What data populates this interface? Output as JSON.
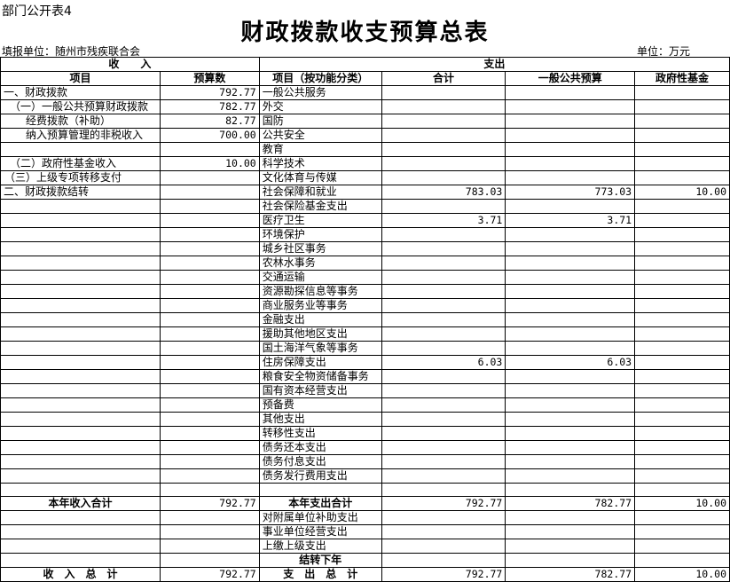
{
  "header": {
    "code": "部门公开表4",
    "title": "财政拨款收支预算总表",
    "unit_left": "填报单位：随州市残疾联合会",
    "unit_right": "单位：万元"
  },
  "table": {
    "group_headers": [
      "收　　入",
      "支出"
    ],
    "columns": [
      "项目",
      "预算数",
      "项目（按功能分类）",
      "合计",
      "一般公共预算",
      "政府性基金"
    ],
    "rows": [
      [
        "一、财政拨款",
        "792.77",
        "一般公共服务",
        null,
        null,
        null
      ],
      [
        "（一）一般公共预算财政拨款",
        "782.77",
        "外交",
        null,
        null,
        null
      ],
      [
        "经费拨款（补助）",
        "82.77",
        "国防",
        null,
        null,
        null
      ],
      [
        "纳入预算管理的非税收入",
        "700.00",
        "公共安全",
        null,
        null,
        null
      ],
      [
        null,
        null,
        "教育",
        null,
        null,
        null
      ],
      [
        "（二）政府性基金收入",
        "10.00",
        "科学技术",
        null,
        null,
        null
      ],
      [
        "（三）上级专项转移支付",
        null,
        "文化体育与传媒",
        null,
        null,
        null
      ],
      [
        "二、财政拨款结转",
        null,
        "社会保障和就业",
        "783.03",
        "773.03",
        "10.00"
      ],
      [
        null,
        null,
        "社会保险基金支出",
        null,
        null,
        null
      ],
      [
        null,
        null,
        "医疗卫生",
        "3.71",
        "3.71",
        null
      ],
      [
        null,
        null,
        "环境保护",
        null,
        null,
        null
      ],
      [
        null,
        null,
        "城乡社区事务",
        null,
        null,
        null
      ],
      [
        null,
        null,
        "农林水事务",
        null,
        null,
        null
      ],
      [
        null,
        null,
        "交通运输",
        null,
        null,
        null
      ],
      [
        null,
        null,
        "资源勘探信息等事务",
        null,
        null,
        null
      ],
      [
        null,
        null,
        "商业服务业等事务",
        null,
        null,
        null
      ],
      [
        null,
        null,
        "金融支出",
        null,
        null,
        null
      ],
      [
        null,
        null,
        "援助其他地区支出",
        null,
        null,
        null
      ],
      [
        null,
        null,
        "国土海洋气象等事务",
        null,
        null,
        null
      ],
      [
        null,
        null,
        "住房保障支出",
        "6.03",
        "6.03",
        null
      ],
      [
        null,
        null,
        "粮食安全物资储备事务",
        null,
        null,
        null
      ],
      [
        null,
        null,
        "国有资本经营支出",
        null,
        null,
        null
      ],
      [
        null,
        null,
        "预备费",
        null,
        null,
        null
      ],
      [
        null,
        null,
        "其他支出",
        null,
        null,
        null
      ],
      [
        null,
        null,
        "转移性支出",
        null,
        null,
        null
      ],
      [
        null,
        null,
        "债务还本支出",
        null,
        null,
        null
      ],
      [
        null,
        null,
        "债务付息支出",
        null,
        null,
        null
      ],
      [
        null,
        null,
        "债务发行费用支出",
        null,
        null,
        null
      ],
      [
        null,
        null,
        null,
        null,
        null,
        null
      ],
      [
        "本年收入合计",
        "792.77",
        "本年支出合计",
        "792.77",
        "782.77",
        "10.00"
      ],
      [
        null,
        null,
        "对附属单位补助支出",
        null,
        null,
        null
      ],
      [
        null,
        null,
        "事业单位经营支出",
        null,
        null,
        null
      ],
      [
        null,
        null,
        "上缴上级支出",
        null,
        null,
        null
      ],
      [
        null,
        null,
        "结转下年",
        null,
        null,
        null
      ],
      [
        "收　入　总　计",
        "792.77",
        "支　出　总　计",
        "792.77",
        "782.77",
        "10.00"
      ]
    ]
  }
}
